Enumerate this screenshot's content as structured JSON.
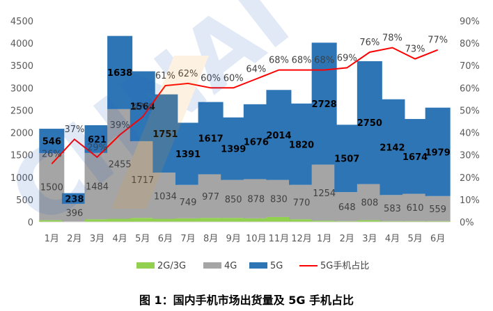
{
  "chart_data": {
    "type": "bar",
    "stacked": true,
    "categories": [
      "1月",
      "2月",
      "3月",
      "4月",
      "5月",
      "6月",
      "7月",
      "8月",
      "9月",
      "10月",
      "11月",
      "12月",
      "1月",
      "2月",
      "3月",
      "4月",
      "5月",
      "6月"
    ],
    "series": [
      {
        "name": "2G/3G",
        "values": [
          40,
          10,
          60,
          70,
          90,
          70,
          80,
          90,
          90,
          80,
          110,
          60,
          30,
          20,
          40,
          20,
          20,
          20
        ],
        "color": "#92d050"
      },
      {
        "name": "4G",
        "values": [
          1500,
          396,
          1484,
          2455,
          1717,
          1034,
          749,
          977,
          850,
          878,
          830,
          770,
          1254,
          648,
          808,
          583,
          610,
          559
        ],
        "color": "#a5a5a5"
      },
      {
        "name": "5G",
        "values": [
          546,
          238,
          621,
          1638,
          1564,
          1751,
          1391,
          1617,
          1399,
          1676,
          2014,
          1820,
          2728,
          1507,
          2750,
          2142,
          1674,
          1979
        ],
        "color": "#2e75b6"
      }
    ],
    "line": {
      "name": "5G手机占比",
      "values": [
        26,
        37,
        29,
        39,
        47,
        61,
        62,
        60,
        60,
        64,
        68,
        68,
        68,
        69,
        76,
        78,
        73,
        77
      ],
      "color": "#ff0000",
      "axis": "right"
    },
    "y_left": {
      "min": 0,
      "max": 4500,
      "ticks": [
        "0",
        "500",
        "1000",
        "1500",
        "2000",
        "2500",
        "3000",
        "3500",
        "4000",
        "4500"
      ]
    },
    "y_right": {
      "min": 0,
      "max": 90,
      "ticks": [
        "0%",
        "10%",
        "20%",
        "30%",
        "40%",
        "50%",
        "60%",
        "70%",
        "80%",
        "90%"
      ]
    },
    "legend_position": "bottom",
    "grid": false
  },
  "caption": "图 1：国内手机市场出货量及 5G 手机占比",
  "watermark": "CHNAI"
}
